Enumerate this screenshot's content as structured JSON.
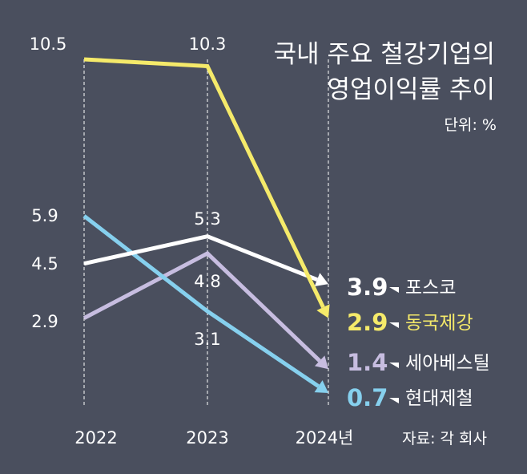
{
  "title_line1": "국내 주요 철강기업의",
  "title_line2": "영업이익률 추이",
  "unit": "단위: %",
  "source": "자료: 각 회사",
  "chart_data": {
    "type": "line",
    "x": [
      "2022",
      "2023",
      "2024년"
    ],
    "series": [
      {
        "name": "동국제강",
        "values": [
          10.5,
          10.3,
          2.9
        ],
        "color": "#f5ea6a",
        "labels": [
          "10.5",
          "10.3",
          "2.9"
        ]
      },
      {
        "name": "포스코",
        "values": [
          4.5,
          5.3,
          3.9
        ],
        "color": "#ffffff",
        "labels": [
          "4.5",
          "5.3",
          "3.9"
        ]
      },
      {
        "name": "세아베스틸",
        "values": [
          2.9,
          4.8,
          1.4
        ],
        "color": "#c7bde0",
        "labels": [
          "2.9",
          "4.8",
          "1.4"
        ]
      },
      {
        "name": "현대제철",
        "values": [
          5.9,
          3.1,
          0.7
        ],
        "color": "#86d0ee",
        "labels": [
          "5.9",
          "3.1",
          "0.7"
        ]
      }
    ],
    "grid": "dashed vertical lines at each year"
  }
}
